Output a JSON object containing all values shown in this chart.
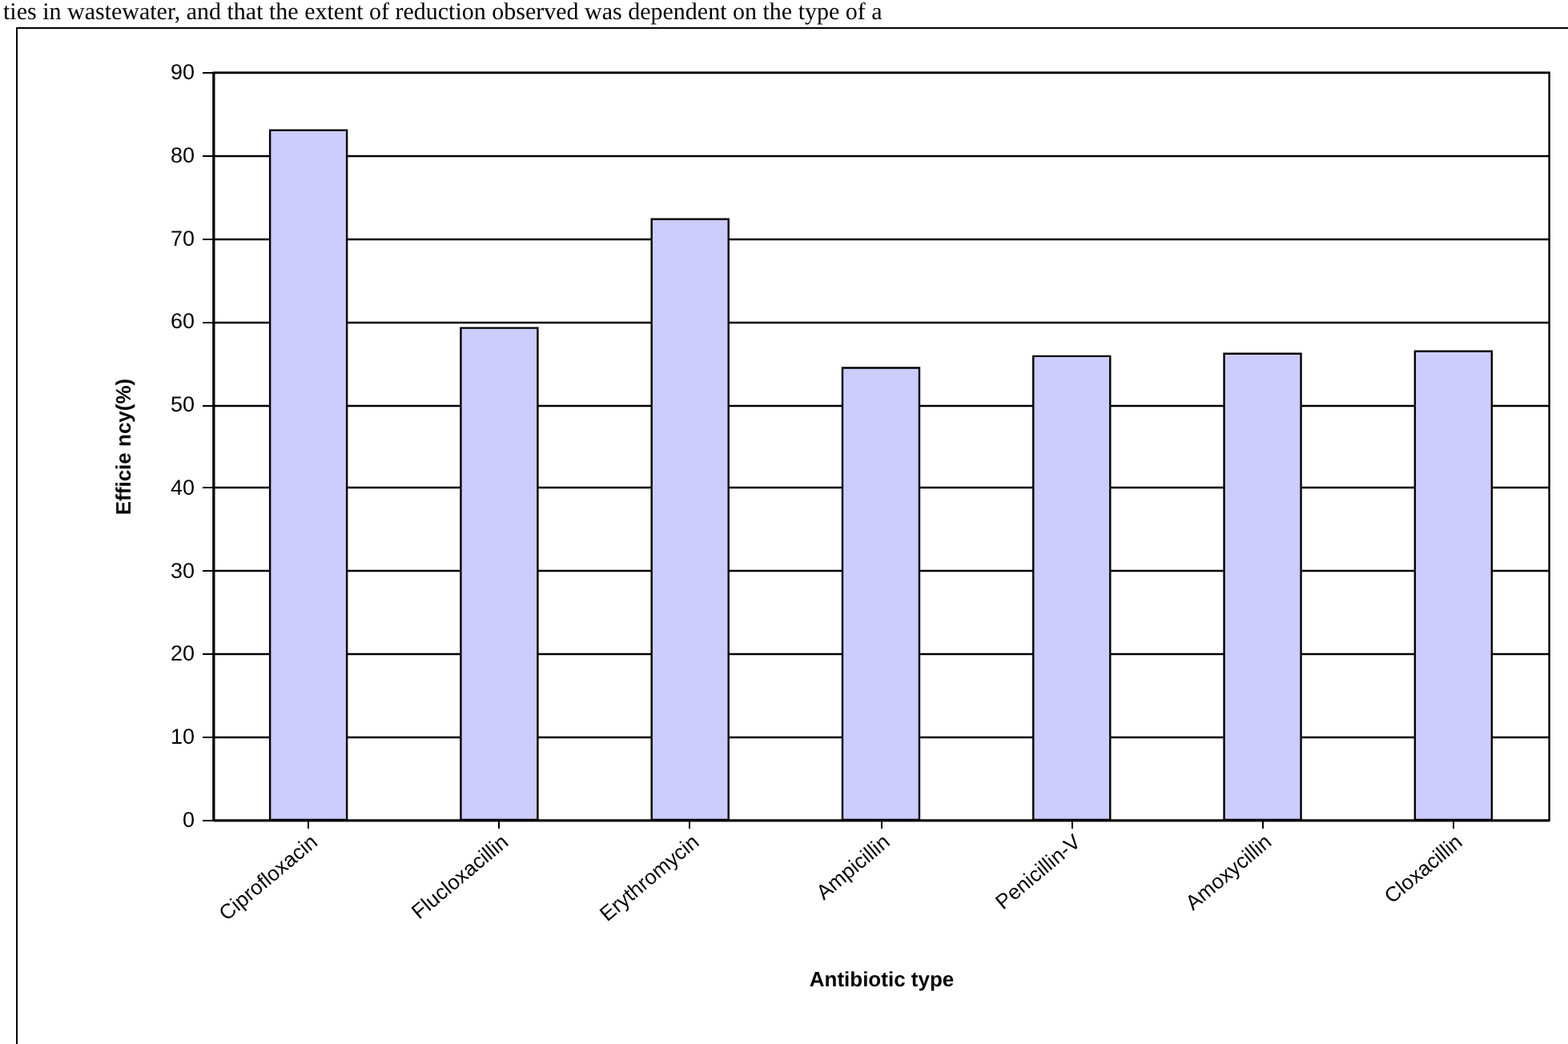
{
  "chart_data": {
    "type": "bar",
    "xlabel": "Antibiotic type",
    "ylabel": "Efficie ncy(%)",
    "annotations": [
      "ties in wastewater, and that the extent of reduction observed was dependent on the type of a"
    ],
    "categories": [
      "Ciprofloxacin",
      "Flucloxacillin",
      "Erythromycin",
      "Ampicillin",
      "Penicillin-V",
      "Amoxycillin",
      "Cloxacillin"
    ],
    "values": [
      83,
      59.2,
      72.3,
      54.4,
      55.8,
      56.1,
      56.4
    ],
    "color": "#ccccff",
    "ylim": [
      0,
      90
    ],
    "yticks": [
      0,
      10,
      20,
      30,
      40,
      50,
      60,
      70,
      80,
      90
    ],
    "grid": "y"
  }
}
